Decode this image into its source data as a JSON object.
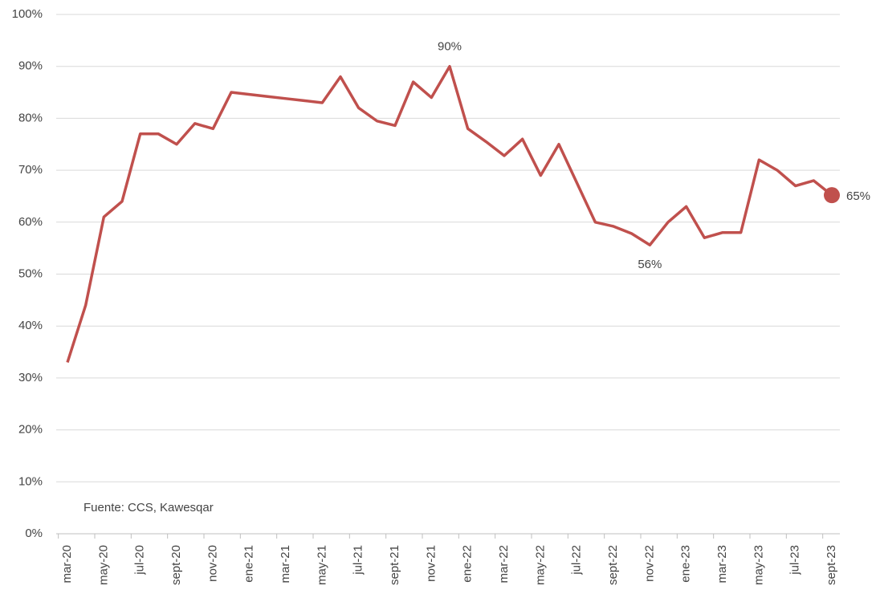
{
  "chart_data": {
    "type": "line",
    "note": "Fuente: CCS, Kawesqar",
    "categories": [
      "mar-20",
      null,
      "may-20",
      null,
      "jul-20",
      null,
      "sept-20",
      null,
      "nov-20",
      null,
      "ene-21",
      null,
      "mar-21",
      null,
      "may-21",
      null,
      "jul-21",
      null,
      "sept-21",
      null,
      "nov-21",
      null,
      "ene-22",
      null,
      "mar-22",
      null,
      "may-22",
      null,
      "jul-22",
      null,
      "sept-22",
      null,
      "nov-22",
      null,
      "ene-23",
      null,
      "mar-23",
      null,
      "may-23",
      null,
      "jul-23",
      null,
      "sept-23"
    ],
    "series": [
      {
        "name": null,
        "color": "#c0504d",
        "values": [
          33,
          44,
          61,
          64,
          77,
          77,
          75,
          79,
          78,
          85,
          84.6,
          84.2,
          83.8,
          83.4,
          83,
          88,
          82,
          79.5,
          78.6,
          87,
          84,
          90,
          78,
          75.5,
          72.8,
          76,
          69,
          75,
          67.5,
          60,
          59.2,
          57.8,
          55.6,
          60,
          63,
          57,
          58,
          58,
          72,
          70,
          67,
          68,
          65.2
        ],
        "value_labels": [
          null,
          null,
          null,
          null,
          null,
          null,
          null,
          null,
          null,
          null,
          null,
          null,
          null,
          null,
          null,
          null,
          null,
          null,
          null,
          null,
          null,
          "90%",
          null,
          null,
          null,
          null,
          null,
          null,
          null,
          null,
          null,
          null,
          "56%",
          null,
          null,
          null,
          null,
          null,
          null,
          null,
          null,
          null,
          "65%"
        ]
      }
    ],
    "ylim": [
      0,
      100
    ],
    "yticks": [
      {
        "value": 0,
        "label": "0%"
      },
      {
        "value": 10,
        "label": "10%"
      },
      {
        "value": 20,
        "label": "20%"
      },
      {
        "value": 30,
        "label": "30%"
      },
      {
        "value": 40,
        "label": "40%"
      },
      {
        "value": 50,
        "label": "50%"
      },
      {
        "value": 60,
        "label": "60%"
      },
      {
        "value": 70,
        "label": "70%"
      },
      {
        "value": 80,
        "label": "80%"
      },
      {
        "value": 90,
        "label": "90%"
      },
      {
        "value": 100,
        "label": "100%"
      }
    ],
    "grid": true
  }
}
